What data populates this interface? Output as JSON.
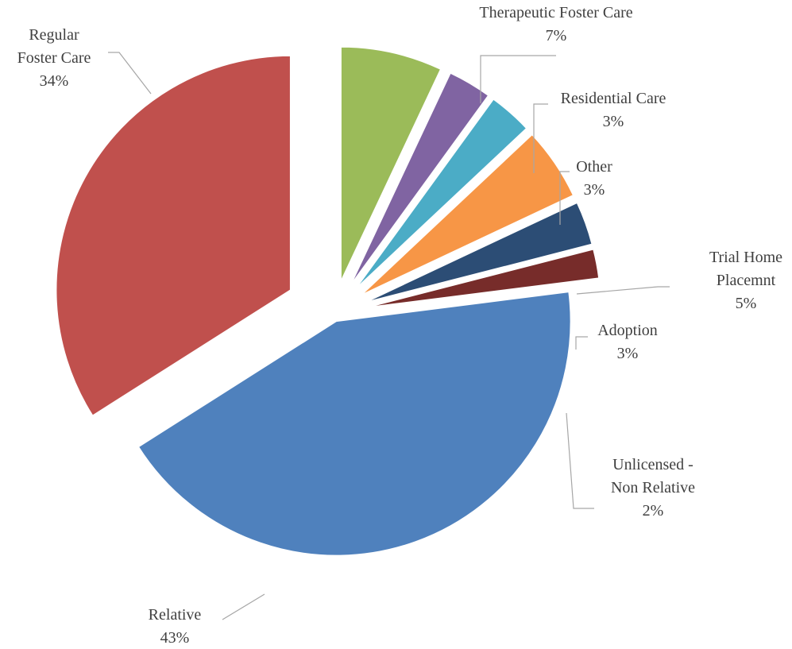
{
  "chart_data": {
    "type": "pie",
    "title": "",
    "exploded": true,
    "start_angle_deg": -90,
    "direction": "clockwise",
    "slices": [
      {
        "name": "Therapeutic Foster Care",
        "label_lines": [
          "Therapeutic Foster Care"
        ],
        "value": 7,
        "pct_label": "7%",
        "color": "#9BBB59"
      },
      {
        "name": "Residential Care",
        "label_lines": [
          "Residential Care"
        ],
        "value": 3,
        "pct_label": "3%",
        "color": "#8064A2"
      },
      {
        "name": "Other",
        "label_lines": [
          "Other"
        ],
        "value": 3,
        "pct_label": "3%",
        "color": "#4BACC6"
      },
      {
        "name": "Trial Home Placemnt",
        "label_lines": [
          "Trial Home",
          "Placemnt"
        ],
        "value": 5,
        "pct_label": "5%",
        "color": "#F79646"
      },
      {
        "name": "Adoption",
        "label_lines": [
          "Adoption"
        ],
        "value": 3,
        "pct_label": "3%",
        "color": "#2C4D75"
      },
      {
        "name": "Unlicensed - Non Relative",
        "label_lines": [
          "Unlicensed -",
          "Non Relative"
        ],
        "value": 2,
        "pct_label": "2%",
        "color": "#772C2A"
      },
      {
        "name": "Relative",
        "label_lines": [
          "Relative"
        ],
        "value": 43,
        "pct_label": "43%",
        "color": "#4F81BD"
      },
      {
        "name": "Regular Foster Care",
        "label_lines": [
          "Regular",
          "Foster Care"
        ],
        "value": 34,
        "pct_label": "34%",
        "color": "#C0504D"
      }
    ]
  }
}
